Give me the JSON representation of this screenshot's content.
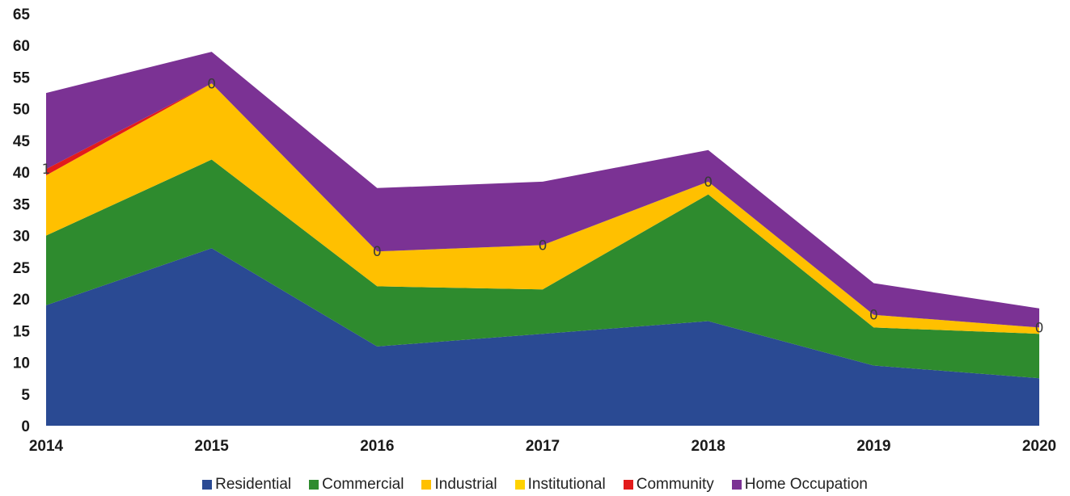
{
  "chart_data": {
    "type": "area",
    "stacked": true,
    "title": "",
    "xlabel": "",
    "ylabel": "",
    "ylim": [
      0,
      65
    ],
    "yticks": [
      0,
      5,
      10,
      15,
      20,
      25,
      30,
      35,
      40,
      45,
      50,
      55,
      60,
      65
    ],
    "categories": [
      "2014",
      "2015",
      "2016",
      "2017",
      "2018",
      "2019",
      "2020"
    ],
    "grid": false,
    "legend_position": "bottom",
    "series": [
      {
        "name": "Residential",
        "color": "#2a4a93",
        "values": [
          19,
          28,
          12.5,
          14.5,
          16.5,
          9.5,
          7.5
        ]
      },
      {
        "name": "Commercial",
        "color": "#2e8b2e",
        "values": [
          11,
          14,
          9.5,
          7,
          20,
          6,
          7
        ]
      },
      {
        "name": "Industrial",
        "color": "#ffc000",
        "values": [
          9.5,
          12,
          5.5,
          7,
          2,
          2,
          1
        ]
      },
      {
        "name": "Institutional",
        "color": "#ffd200",
        "values": [
          0,
          0,
          0,
          0,
          0,
          0,
          0
        ]
      },
      {
        "name": "Community",
        "color": "#e31b1b",
        "values": [
          1,
          0,
          0,
          0,
          0,
          0,
          0
        ]
      },
      {
        "name": "Home Occupation",
        "color": "#7b3294",
        "values": [
          12,
          5,
          10,
          10,
          5,
          5,
          3
        ]
      }
    ],
    "data_labels": [
      {
        "category": "2014",
        "text": "1"
      },
      {
        "category": "2015",
        "text": "0"
      },
      {
        "category": "2016",
        "text": "0"
      },
      {
        "category": "2017",
        "text": "0"
      },
      {
        "category": "2018",
        "text": "0"
      },
      {
        "category": "2019",
        "text": "0"
      },
      {
        "category": "2020",
        "text": "0"
      }
    ]
  }
}
